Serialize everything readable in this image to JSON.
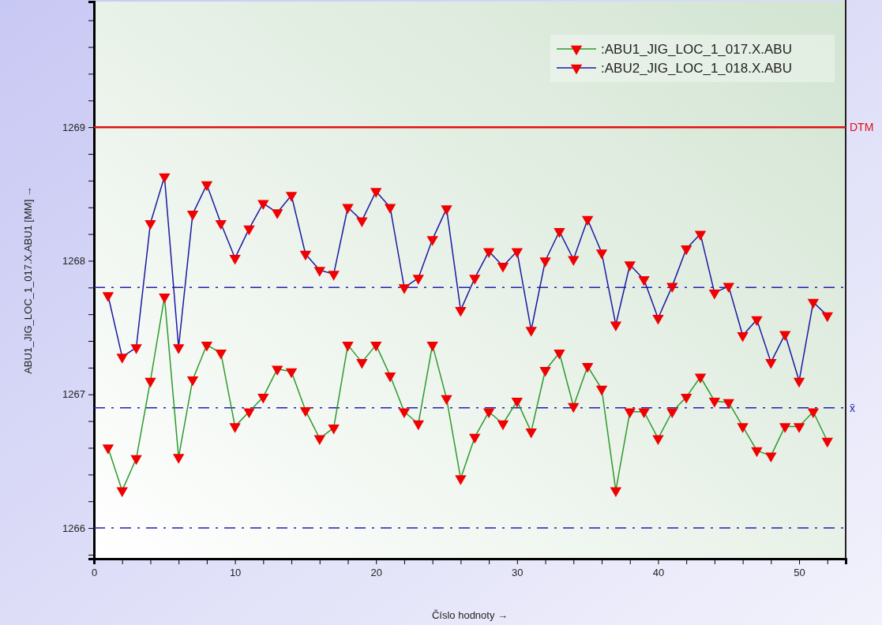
{
  "chart_data": {
    "type": "line",
    "xlabel": "Číslo hodnoty →",
    "ylabel": "ABU1_JIG_LOC_1_017.X.ABU1 [MM] →",
    "x": [
      1,
      2,
      3,
      4,
      5,
      6,
      7,
      8,
      9,
      10,
      11,
      12,
      13,
      14,
      15,
      16,
      17,
      18,
      19,
      20,
      21,
      22,
      23,
      24,
      25,
      26,
      27,
      28,
      29,
      30,
      31,
      32,
      33,
      34,
      35,
      36,
      37,
      38,
      39,
      40,
      41,
      42,
      43,
      44,
      45,
      46,
      47,
      48,
      49,
      50,
      51,
      52
    ],
    "series": [
      {
        "name": ":ABU1_JIG_LOC_1_017.X.ABU",
        "color": "#2e9a2e",
        "values": [
          1266.6,
          1266.28,
          1266.52,
          1267.1,
          1267.73,
          1266.53,
          1267.11,
          1267.37,
          1267.31,
          1266.76,
          1266.87,
          1266.98,
          1267.19,
          1267.17,
          1266.88,
          1266.67,
          1266.75,
          1267.37,
          1267.24,
          1267.37,
          1267.14,
          1266.87,
          1266.78,
          1267.37,
          1266.97,
          1266.37,
          1266.68,
          1266.87,
          1266.78,
          1266.95,
          1266.72,
          1267.18,
          1267.31,
          1266.91,
          1267.21,
          1267.04,
          1266.28,
          1266.87,
          1266.87,
          1266.67,
          1266.87,
          1266.98,
          1267.13,
          1266.95,
          1266.94,
          1266.76,
          1266.58,
          1266.54,
          1266.76,
          1266.76,
          1266.87,
          1266.65
        ]
      },
      {
        "name": ":ABU2_JIG_LOC_1_018.X.ABU",
        "color": "#1a1aa0",
        "values": [
          1267.74,
          1267.28,
          1267.35,
          1268.28,
          1268.63,
          1267.35,
          1268.35,
          1268.57,
          1268.28,
          1268.02,
          1268.24,
          1268.43,
          1268.36,
          1268.49,
          1268.05,
          1267.93,
          1267.9,
          1268.4,
          1268.3,
          1268.52,
          1268.4,
          1267.8,
          1267.87,
          1268.16,
          1268.39,
          1267.63,
          1267.87,
          1268.07,
          1267.96,
          1268.07,
          1267.48,
          1268.0,
          1268.22,
          1268.01,
          1268.31,
          1268.06,
          1267.52,
          1267.97,
          1267.86,
          1267.57,
          1267.81,
          1268.09,
          1268.2,
          1267.76,
          1267.81,
          1267.44,
          1267.56,
          1267.24,
          1267.45,
          1267.1,
          1267.69,
          1267.59
        ]
      }
    ],
    "xlim": [
      0,
      53.3
    ],
    "xticks": [
      0,
      {
        "value": 2,
        "label": null
      },
      {
        "value": 4,
        "label": null
      },
      {
        "value": 6,
        "label": null
      },
      {
        "value": 8,
        "label": null
      },
      10,
      {
        "value": 12,
        "label": null
      },
      {
        "value": 14,
        "label": null
      },
      {
        "value": 16,
        "label": null
      },
      {
        "value": 18,
        "label": null
      },
      20,
      {
        "value": 22,
        "label": null
      },
      {
        "value": 24,
        "label": null
      },
      {
        "value": 26,
        "label": null
      },
      {
        "value": 28,
        "label": null
      },
      30,
      {
        "value": 32,
        "label": null
      },
      {
        "value": 34,
        "label": null
      },
      {
        "value": 36,
        "label": null
      },
      {
        "value": 38,
        "label": null
      },
      40,
      {
        "value": 42,
        "label": null
      },
      {
        "value": 44,
        "label": null
      },
      {
        "value": 46,
        "label": null
      },
      {
        "value": 48,
        "label": null
      },
      50,
      {
        "value": 52,
        "label": null
      }
    ],
    "ylim": [
      1265.77,
      1269.94
    ],
    "yticks": [
      {
        "value": 1265.8,
        "label": null
      },
      1266,
      {
        "value": 1266.2,
        "label": null
      },
      {
        "value": 1266.4,
        "label": null
      },
      {
        "value": 1266.6,
        "label": null
      },
      {
        "value": 1266.8,
        "label": null
      },
      1267,
      {
        "value": 1267.2,
        "label": null
      },
      {
        "value": 1267.4,
        "label": null
      },
      {
        "value": 1267.6,
        "label": null
      },
      {
        "value": 1267.8,
        "label": null
      },
      1268,
      {
        "value": 1268.2,
        "label": null
      },
      {
        "value": 1268.4,
        "label": null
      },
      {
        "value": 1268.6,
        "label": null
      },
      {
        "value": 1268.8,
        "label": null
      },
      1269,
      {
        "value": 1269.2,
        "label": null
      },
      {
        "value": 1269.4,
        "label": null
      },
      {
        "value": 1269.6,
        "label": null
      },
      {
        "value": 1269.8,
        "label": null
      }
    ],
    "ref_lines": [
      {
        "axis": "y",
        "value": 1269,
        "label": "DTM",
        "color": "#e01010",
        "line_style": "solid"
      },
      {
        "axis": "y",
        "value": 1267.8,
        "label": null,
        "color": "#2020b0",
        "line_style": "dashdot"
      },
      {
        "axis": "y",
        "value": 1266.9,
        "label": "x̄",
        "color": "#2020b0",
        "line_style": "dashdot"
      },
      {
        "axis": "y",
        "value": 1266.0,
        "label": null,
        "color": "#2020b0",
        "line_style": "dashdot"
      }
    ],
    "marker": "triangle",
    "legend": "top right",
    "grid": false,
    "line_style": "solid"
  }
}
